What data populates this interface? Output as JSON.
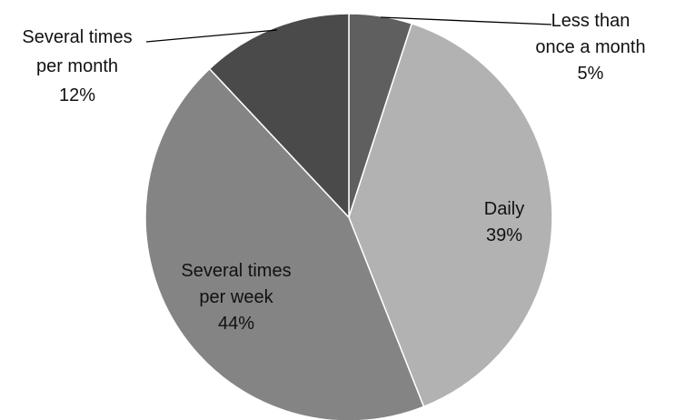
{
  "chart_data": {
    "type": "pie",
    "start_angle_deg": 0,
    "direction": "clockwise",
    "slices": [
      {
        "label_lines": [
          "Less than",
          "once a month"
        ],
        "percent_text": "5%",
        "value": 5,
        "color": "#5f5f5f"
      },
      {
        "label_lines": [
          "Daily"
        ],
        "percent_text": "39%",
        "value": 39,
        "color": "#b2b2b2"
      },
      {
        "label_lines": [
          "Several times",
          "per week"
        ],
        "percent_text": "44%",
        "value": 44,
        "color": "#848484"
      },
      {
        "label_lines": [
          "Several times",
          "per month"
        ],
        "percent_text": "12%",
        "value": 12,
        "color": "#4a4a4a"
      }
    ],
    "slice_border_color": "#ffffff",
    "leader_line_color": "#000000",
    "legend": "none"
  }
}
